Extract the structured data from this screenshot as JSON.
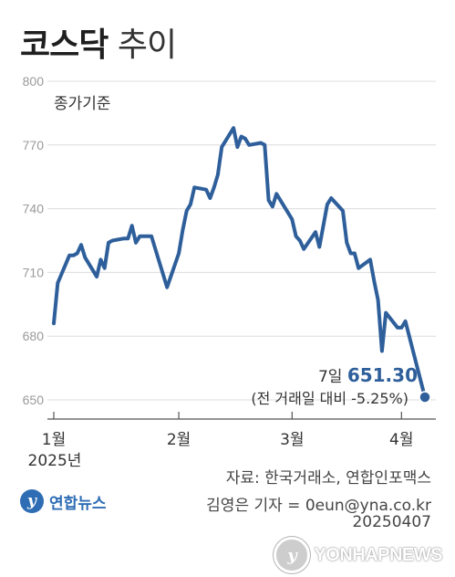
{
  "title": {
    "bold": "코스닥",
    "normal": "추이"
  },
  "chart_data": {
    "type": "line",
    "unit_label": "종가기준",
    "y_ticks": [
      800,
      770,
      740,
      710,
      680,
      650
    ],
    "ylim": [
      650,
      800
    ],
    "x_ticks": [
      {
        "date": "2025-01-02",
        "label": "1월"
      },
      {
        "date": "2025-02-03",
        "label": "2월"
      },
      {
        "date": "2025-03-04",
        "label": "3월"
      },
      {
        "date": "2025-04-01",
        "label": "4월"
      }
    ],
    "year_label": "2025년",
    "series": [
      {
        "color": "#2e5f9b",
        "points": [
          [
            "2025-01-02",
            686
          ],
          [
            "2025-01-03",
            705
          ],
          [
            "2025-01-06",
            718
          ],
          [
            "2025-01-07",
            718
          ],
          [
            "2025-01-08",
            719
          ],
          [
            "2025-01-09",
            723
          ],
          [
            "2025-01-10",
            717
          ],
          [
            "2025-01-13",
            708
          ],
          [
            "2025-01-14",
            716
          ],
          [
            "2025-01-15",
            712
          ],
          [
            "2025-01-16",
            724
          ],
          [
            "2025-01-17",
            725
          ],
          [
            "2025-01-20",
            726
          ],
          [
            "2025-01-21",
            726
          ],
          [
            "2025-01-22",
            732
          ],
          [
            "2025-01-23",
            724
          ],
          [
            "2025-01-24",
            727
          ],
          [
            "2025-01-27",
            727
          ],
          [
            "2025-01-31",
            703
          ],
          [
            "2025-02-03",
            719
          ],
          [
            "2025-02-04",
            730
          ],
          [
            "2025-02-05",
            739
          ],
          [
            "2025-02-06",
            742
          ],
          [
            "2025-02-07",
            750
          ],
          [
            "2025-02-10",
            749
          ],
          [
            "2025-02-11",
            745
          ],
          [
            "2025-02-12",
            750
          ],
          [
            "2025-02-13",
            756
          ],
          [
            "2025-02-14",
            769
          ],
          [
            "2025-02-17",
            778
          ],
          [
            "2025-02-18",
            769
          ],
          [
            "2025-02-19",
            774
          ],
          [
            "2025-02-20",
            773
          ],
          [
            "2025-02-21",
            770
          ],
          [
            "2025-02-24",
            771
          ],
          [
            "2025-02-25",
            770
          ],
          [
            "2025-02-26",
            744
          ],
          [
            "2025-02-27",
            741
          ],
          [
            "2025-02-28",
            747
          ],
          [
            "2025-03-04",
            735
          ],
          [
            "2025-03-05",
            727
          ],
          [
            "2025-03-06",
            725
          ],
          [
            "2025-03-07",
            721
          ],
          [
            "2025-03-10",
            729
          ],
          [
            "2025-03-11",
            722
          ],
          [
            "2025-03-12",
            732
          ],
          [
            "2025-03-13",
            742
          ],
          [
            "2025-03-14",
            745
          ],
          [
            "2025-03-17",
            739
          ],
          [
            "2025-03-18",
            724
          ],
          [
            "2025-03-19",
            719
          ],
          [
            "2025-03-20",
            719
          ],
          [
            "2025-03-21",
            712
          ],
          [
            "2025-03-24",
            716
          ],
          [
            "2025-03-25",
            706
          ],
          [
            "2025-03-26",
            697
          ],
          [
            "2025-03-27",
            673
          ],
          [
            "2025-03-28",
            691
          ],
          [
            "2025-03-31",
            684
          ],
          [
            "2025-04-01",
            684
          ],
          [
            "2025-04-02",
            687
          ],
          [
            "2025-04-07",
            651.3
          ]
        ]
      }
    ],
    "annotation": {
      "date_label": "7일",
      "value": "651.30",
      "change": "(전 거래일 대비 -5.25%)"
    }
  },
  "source": "자료: 한국거래소, 연합인포맥스",
  "reporter": "김영은 기자 = 0eun@yna.co.kr",
  "code": "20250407",
  "logo": {
    "text": "연합뉴스"
  },
  "watermark": "YONHAPNEWS"
}
